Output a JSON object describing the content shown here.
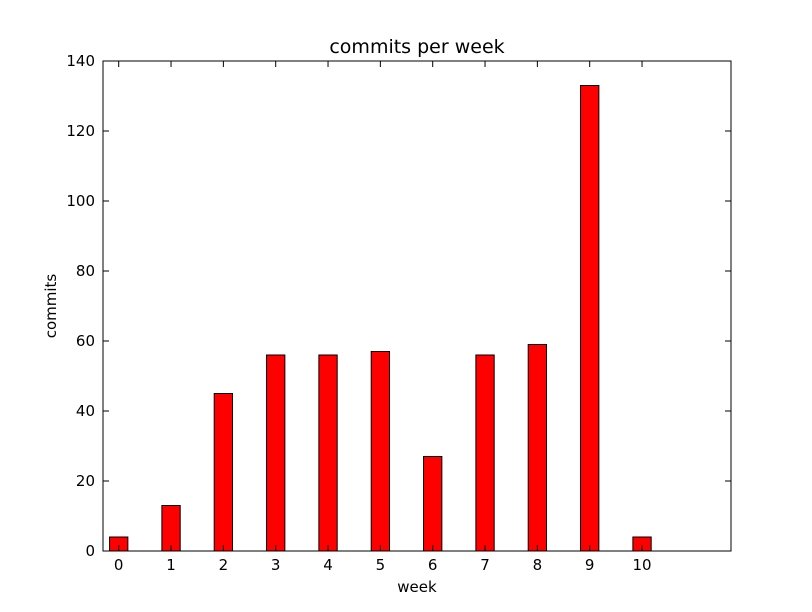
{
  "chart_data": {
    "type": "bar",
    "title": "commits per week",
    "xlabel": "week",
    "ylabel": "commits",
    "categories": [
      "0",
      "1",
      "2",
      "3",
      "4",
      "5",
      "6",
      "7",
      "8",
      "9",
      "10"
    ],
    "x": [
      0,
      1,
      2,
      3,
      4,
      5,
      6,
      7,
      8,
      9,
      10
    ],
    "values": [
      4,
      13,
      45,
      56,
      56,
      57,
      27,
      56,
      59,
      133,
      4
    ],
    "xlim": [
      -0.3,
      11.7
    ],
    "ylim": [
      0,
      140
    ],
    "yticks": [
      0,
      20,
      40,
      60,
      80,
      100,
      120,
      140
    ],
    "bar_color": "#ff0000",
    "edge_color": "#000000",
    "grid": false
  }
}
